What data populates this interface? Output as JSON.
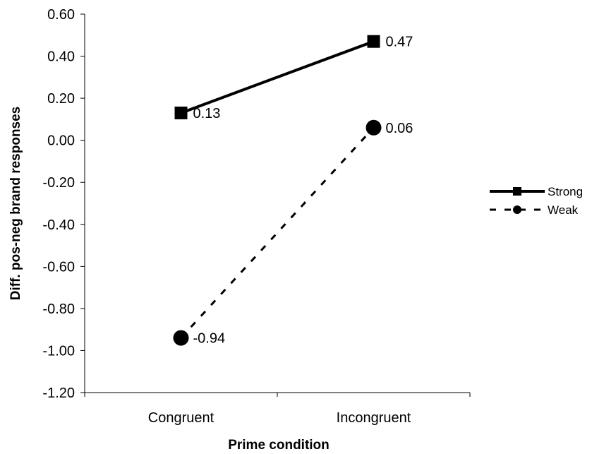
{
  "chart_data": {
    "type": "line",
    "title": "",
    "xlabel": "Prime condition",
    "ylabel": "Diff. pos-neg brand responses",
    "categories": [
      "Congruent",
      "Incongruent"
    ],
    "ylim": [
      -1.2,
      0.6
    ],
    "yticks": [
      0.6,
      0.4,
      0.2,
      0.0,
      -0.2,
      -0.4,
      -0.6,
      -0.8,
      -1.0,
      -1.2
    ],
    "ytick_labels": [
      "0.60",
      "0.40",
      "0.20",
      "0.00",
      "-0.20",
      "-0.40",
      "-0.60",
      "-0.80",
      "-1.00",
      "-1.20"
    ],
    "grid": false,
    "legend_position": "right",
    "series": [
      {
        "name": "Strong",
        "values": [
          0.13,
          0.47
        ],
        "labels": [
          "0.13",
          "0.47"
        ],
        "marker": "square",
        "line_style": "solid",
        "color": "#000000"
      },
      {
        "name": "Weak",
        "values": [
          -0.94,
          0.06
        ],
        "labels": [
          "-0.94",
          "0.06"
        ],
        "marker": "circle",
        "line_style": "dashed",
        "color": "#000000"
      }
    ]
  }
}
